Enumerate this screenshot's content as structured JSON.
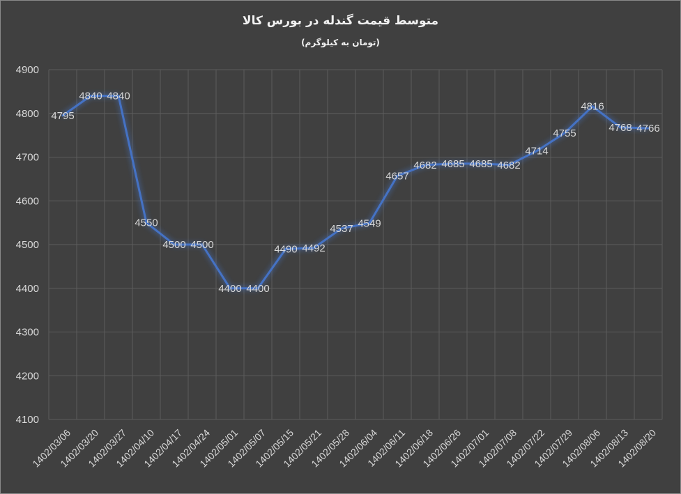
{
  "chart_data": {
    "type": "line",
    "title": "متوسط قیمت گندله در بورس کالا",
    "subtitle": "(تومان به کیلوگرم)",
    "xlabel": "",
    "ylabel": "",
    "ylim": [
      4100,
      4900
    ],
    "yticks": [
      4900,
      4800,
      4700,
      4600,
      4500,
      4400,
      4300,
      4200,
      4100
    ],
    "grid": true,
    "categories": [
      "1402/03/06",
      "1402/03/20",
      "1402/03/27",
      "1402/04/10",
      "1402/04/17",
      "1402/04/24",
      "1402/05/01",
      "1402/05/07",
      "1402/05/15",
      "1402/05/21",
      "1402/05/28",
      "1402/06/04",
      "1402/06/11",
      "1402/06/18",
      "1402/06/26",
      "1402/07/01",
      "1402/07/08",
      "1402/07/22",
      "1402/07/29",
      "1402/08/06",
      "1402/08/13",
      "1402/08/20"
    ],
    "series": [
      {
        "values": [
          4795,
          4840,
          4840,
          4550,
          4500,
          4500,
          4400,
          4400,
          4490,
          4492,
          4537,
          4549,
          4657,
          4682,
          4685,
          4685,
          4682,
          4714,
          4755,
          4816,
          4768,
          4766
        ]
      }
    ],
    "line_color": "#4472c4"
  }
}
